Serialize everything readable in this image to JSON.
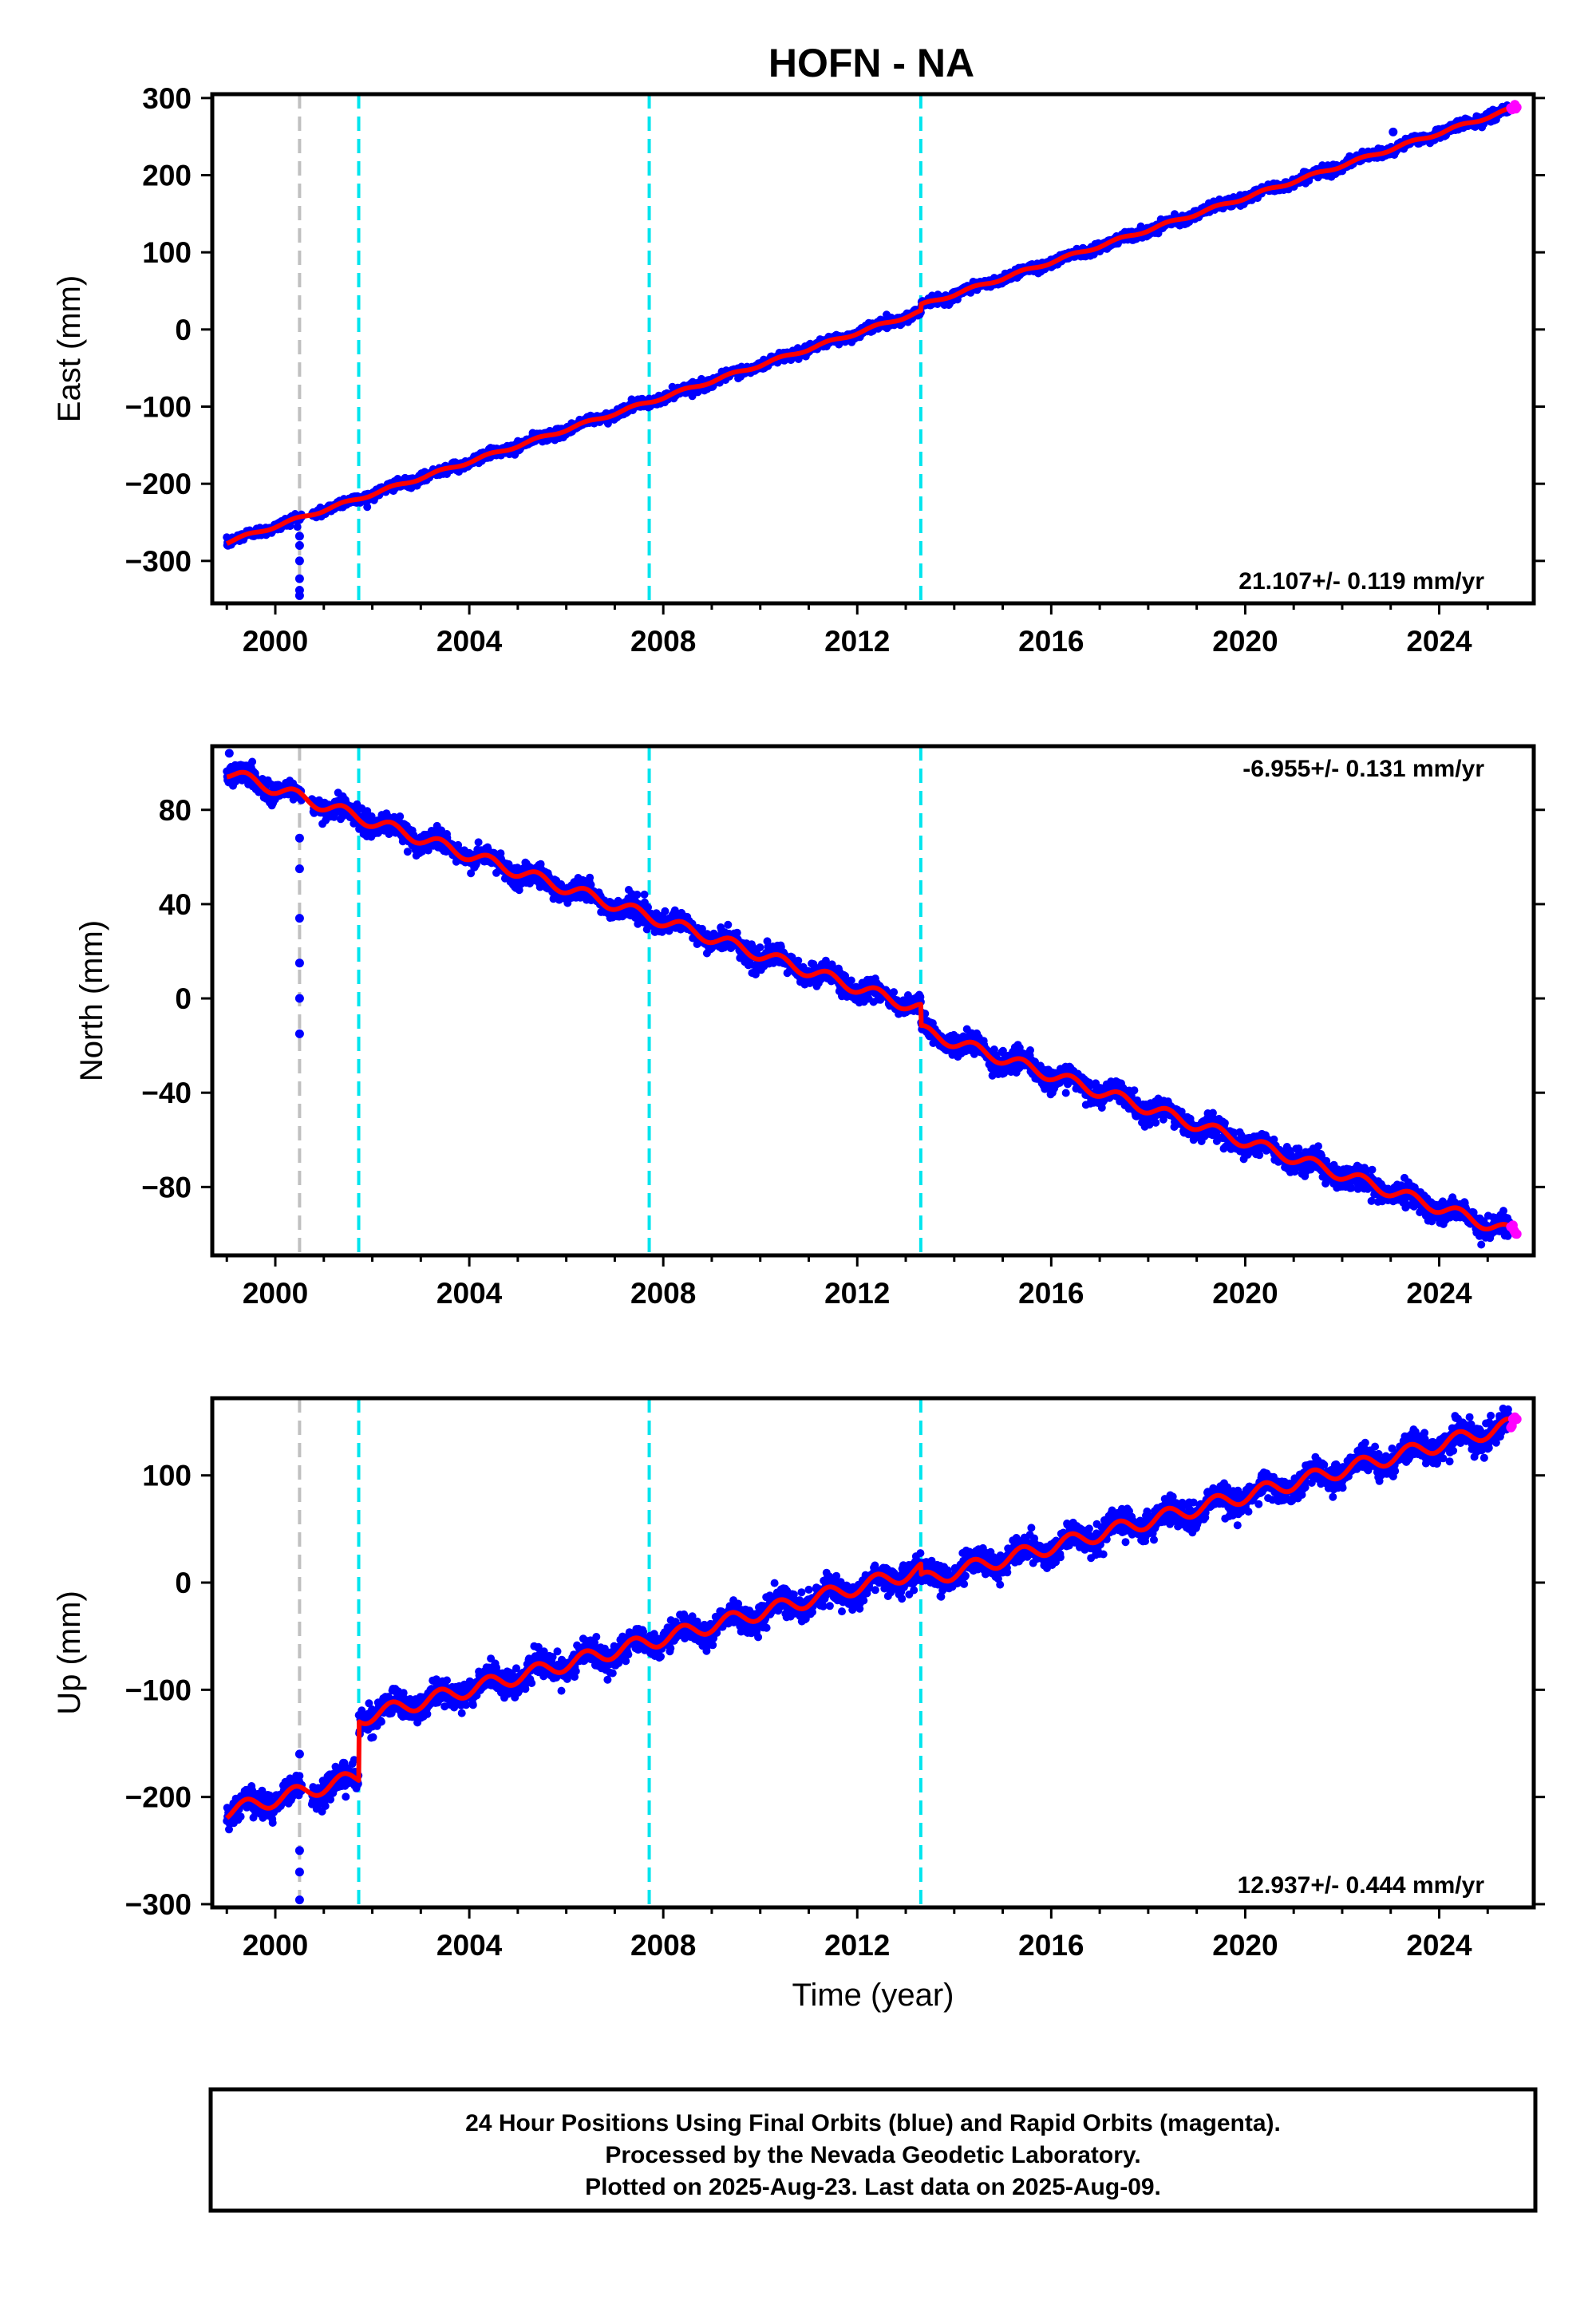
{
  "title": "HOFN - NA",
  "footer": {
    "line1": "24 Hour Positions Using Final Orbits (blue) and Rapid Orbits (magenta).",
    "line2": "Processed by the Nevada Geodetic Laboratory.",
    "line3": "Plotted on 2025-Aug-23. Last data on 2025-Aug-09."
  },
  "colors": {
    "final_orbits": "#0000ff",
    "rapid_orbits": "#ff00ff",
    "model": "#ff0000",
    "event_line": "#00e5ee",
    "gap_line": "#c0c0c0"
  },
  "chart_data": [
    {
      "type": "scatter",
      "component": "East",
      "ylabel": "East (mm)",
      "xlabel": "",
      "xlim": [
        1998.7,
        2025.95
      ],
      "ylim": [
        -355,
        305
      ],
      "xticks": [
        "2000",
        "2004",
        "2008",
        "2012",
        "2016",
        "2020",
        "2024"
      ],
      "yticks": [
        "300",
        "200",
        "100",
        "0",
        "−100",
        "−200",
        "−300"
      ],
      "rate_label": "21.107+/- 0.119 mm/yr",
      "rate_position": "bottom-right",
      "rate_mm_per_yr": 21.107,
      "rate_sigma_mm_per_yr": 0.119,
      "event_lines_cyan": [
        2001.72,
        2007.71,
        2013.31
      ],
      "event_lines_gray": [
        2000.5
      ],
      "trend": {
        "start": [
          1999.0,
          -276
        ],
        "end": [
          2025.6,
          288
        ]
      },
      "offsets": [
        {
          "year": 2013.31,
          "size": 8
        }
      ],
      "seasonal_amplitude_mm": 2,
      "scatter_sd_mm": 3,
      "outliers": [
        [
          2000.5,
          -268
        ],
        [
          2000.5,
          -280
        ],
        [
          2000.5,
          -300
        ],
        [
          2000.5,
          -323
        ],
        [
          2000.5,
          -338
        ],
        [
          2000.5,
          -345
        ],
        [
          2023.05,
          256
        ]
      ],
      "data_span": [
        1999.0,
        2025.6
      ]
    },
    {
      "type": "scatter",
      "component": "North",
      "ylabel": "North (mm)",
      "xlabel": "",
      "xlim": [
        1998.7,
        2025.95
      ],
      "ylim": [
        -109,
        107
      ],
      "xticks": [
        "2000",
        "2004",
        "2008",
        "2012",
        "2016",
        "2020",
        "2024"
      ],
      "yticks": [
        "80",
        "40",
        "0",
        "−40",
        "−80"
      ],
      "rate_label": "-6.955+/- 0.131 mm/yr",
      "rate_position": "top-right",
      "rate_mm_per_yr": -6.955,
      "rate_sigma_mm_per_yr": 0.131,
      "event_lines_cyan": [
        2001.72,
        2007.71,
        2013.31
      ],
      "event_lines_gray": [
        2000.5
      ],
      "trend": {
        "start": [
          1999.0,
          96
        ],
        "end": [
          2025.6,
          -100
        ]
      },
      "offsets": [
        {
          "year": 2013.31,
          "size": -9
        }
      ],
      "seasonal_amplitude_mm": 2.5,
      "scatter_sd_mm": 2.2,
      "outliers": [
        [
          1999.05,
          104
        ],
        [
          2000.5,
          68
        ],
        [
          2000.5,
          55
        ],
        [
          2000.5,
          34
        ],
        [
          2000.5,
          15
        ],
        [
          2000.5,
          0
        ],
        [
          2000.5,
          -15
        ]
      ],
      "data_span": [
        1999.0,
        2025.6
      ]
    },
    {
      "type": "scatter",
      "component": "Up",
      "ylabel": "Up (mm)",
      "xlabel": "Time (year)",
      "xlim": [
        1998.7,
        2025.95
      ],
      "ylim": [
        -303,
        172
      ],
      "xticks": [
        "2000",
        "2004",
        "2008",
        "2012",
        "2016",
        "2020",
        "2024"
      ],
      "yticks": [
        "100",
        "0",
        "−100",
        "−200",
        "−300"
      ],
      "rate_label": "12.937+/- 0.444 mm/yr",
      "rate_position": "bottom-right",
      "rate_mm_per_yr": 12.937,
      "rate_sigma_mm_per_yr": 0.444,
      "event_lines_cyan": [
        2001.72,
        2007.71,
        2013.31
      ],
      "event_lines_gray": [
        2000.5
      ],
      "trend": {
        "start": [
          1999.0,
          -214
        ],
        "end": [
          2025.6,
          148
        ]
      },
      "offsets": [
        {
          "year": 2001.72,
          "size": 55
        },
        {
          "year": 2013.31,
          "size": -10
        }
      ],
      "seasonal_amplitude_mm": 7,
      "scatter_sd_mm": 6,
      "outliers": [
        [
          2000.5,
          -160
        ],
        [
          2000.5,
          -250
        ],
        [
          2000.5,
          -270
        ],
        [
          2000.5,
          -296
        ]
      ],
      "data_span": [
        1999.0,
        2025.6
      ]
    }
  ]
}
